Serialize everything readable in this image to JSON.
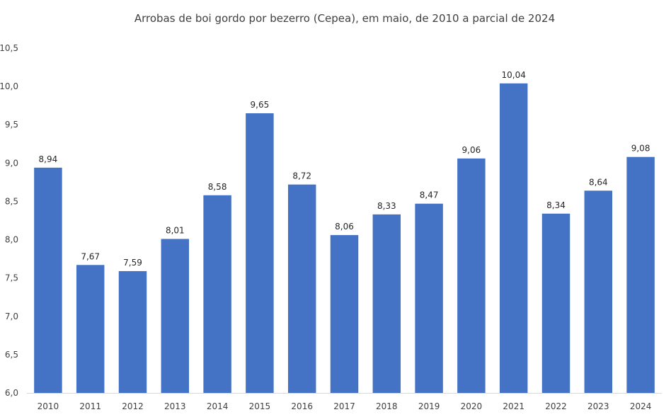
{
  "chart_data": {
    "type": "bar",
    "title": "Arrobas de boi gordo por bezerro (Cepea), em maio, de 2010 a parcial de 2024",
    "xlabel": "",
    "ylabel": "",
    "categories": [
      "2010",
      "2011",
      "2012",
      "2013",
      "2014",
      "2015",
      "2016",
      "2017",
      "2018",
      "2019",
      "2020",
      "2021",
      "2022",
      "2023",
      "2024"
    ],
    "values": [
      8.94,
      7.67,
      7.59,
      8.01,
      8.58,
      9.65,
      8.72,
      8.06,
      8.33,
      8.47,
      9.06,
      10.04,
      8.34,
      8.64,
      9.08
    ],
    "data_labels": [
      "8,94",
      "7,67",
      "7,59",
      "8,01",
      "8,58",
      "9,65",
      "8,72",
      "8,06",
      "8,33",
      "8,47",
      "9,06",
      "10,04",
      "8,34",
      "8,64",
      "9,08"
    ],
    "ylim": [
      6.0,
      10.5
    ],
    "y_ticks": [
      "6,0",
      "6,5",
      "7,0",
      "7,5",
      "8,0",
      "8,5",
      "9,0",
      "9,5",
      "10,0",
      "10,5"
    ],
    "grid": false,
    "legend": "none",
    "bar_color": "#4472c4"
  }
}
